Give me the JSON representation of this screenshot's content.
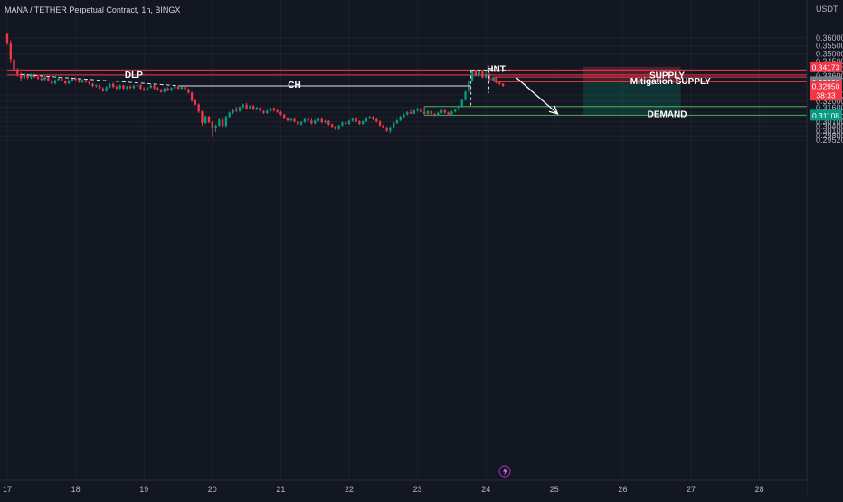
{
  "chart_data": {
    "type": "candlestick",
    "title": "MANA / TETHER Perpetual Contract, 1h, BINGX",
    "currency": "USDT",
    "grid": true,
    "ylim": [
      0.2935,
      0.3645
    ],
    "xlim": [
      17.0,
      28.95
    ],
    "price_ticks": [
      "0.36000",
      "0.35500",
      "0.35000",
      "0.34500",
      "0.34000",
      "0.33600",
      "0.32400",
      "0.32000",
      "0.31600",
      "0.31300",
      "0.31000",
      "0.30700",
      "0.30400",
      "0.30100",
      "0.29800",
      "0.29520"
    ],
    "date_ticks": [
      "17",
      "18",
      "19",
      "20",
      "21",
      "22",
      "23",
      "24",
      "25",
      "26",
      "27",
      "28"
    ],
    "price_badges": [
      {
        "label": "0.34173",
        "value": 0.34173,
        "color": "#f23645"
      },
      {
        "label": "0.33230",
        "value": 0.3323,
        "color": "#787b86"
      },
      {
        "label": "0.32950",
        "sublabel": "38:33",
        "value": 0.3295,
        "color": "#f23645"
      },
      {
        "label": "0.31108",
        "value": 0.31108,
        "color": "#089981"
      }
    ],
    "annotations": [
      {
        "text": "DLP",
        "x": 18.85,
        "y": 0.3372
      },
      {
        "text": "CH",
        "x": 21.2,
        "y": 0.3309
      },
      {
        "text": "HNT",
        "x": 24.15,
        "y": 0.3409
      },
      {
        "text": "SUPPLY",
        "x": 26.65,
        "y": 0.3367
      },
      {
        "text": "Mitigation SUPPLY",
        "x": 26.7,
        "y": 0.3331
      },
      {
        "text": "DEMAND",
        "x": 26.65,
        "y": 0.3122
      }
    ],
    "levels": [
      {
        "name": "supply-top",
        "price": 0.3397,
        "x_start": 17.0,
        "color": "#f23645"
      },
      {
        "name": "supply-bottom",
        "price": 0.3366,
        "x_start": 17.0,
        "color": "#f23645"
      },
      {
        "name": "mitigation-top",
        "price": 0.3353,
        "x_start": 24.12,
        "color": "#f23645"
      },
      {
        "name": "mitigation-bottom",
        "price": 0.3323,
        "x_start": 24.12,
        "color": "#f23645"
      },
      {
        "name": "demand-top",
        "price": 0.3166,
        "x_start": 23.1,
        "color": "#4caf50"
      },
      {
        "name": "demand-bottom",
        "price": 0.31108,
        "x_start": 23.1,
        "color": "#4caf50"
      }
    ],
    "lines": [
      {
        "name": "dlp-line",
        "x1": 17.2,
        "y1": 0.3369,
        "x2": 19.55,
        "y2": 0.3296,
        "style": "dashed"
      },
      {
        "name": "ch-line",
        "x1": 19.55,
        "y1": 0.3296,
        "x2": 23.78,
        "y2": 0.3296,
        "style": "solid"
      },
      {
        "name": "hnt-line",
        "x1": 23.78,
        "y1": 0.3396,
        "x2": 24.35,
        "y2": 0.3396,
        "style": "dashed"
      }
    ],
    "arrow": {
      "x1": 24.45,
      "y1": 0.3347,
      "x2": 25.05,
      "y2": 0.3119
    },
    "position_box": {
      "x_start": 25.42,
      "x_end": 26.85,
      "stop": 0.34173,
      "entry": 0.3323,
      "target": 0.31108,
      "risk_color": "#f23645",
      "reward_color": "#089981"
    },
    "candles": [
      [
        17.0,
        0.3625,
        0.363,
        0.3555,
        0.357
      ],
      [
        17.05,
        0.357,
        0.3585,
        0.344,
        0.3465
      ],
      [
        17.1,
        0.3465,
        0.3475,
        0.3375,
        0.3395
      ],
      [
        17.15,
        0.3395,
        0.341,
        0.3355,
        0.337
      ],
      [
        17.2,
        0.337,
        0.338,
        0.3325,
        0.3345
      ],
      [
        17.25,
        0.3345,
        0.3378,
        0.3338,
        0.3365
      ],
      [
        17.3,
        0.3365,
        0.3372,
        0.3339,
        0.3348
      ],
      [
        17.35,
        0.3348,
        0.3375,
        0.334,
        0.3366
      ],
      [
        17.4,
        0.3366,
        0.3373,
        0.3346,
        0.3355
      ],
      [
        17.45,
        0.3355,
        0.3368,
        0.3337,
        0.3343
      ],
      [
        17.5,
        0.3343,
        0.3358,
        0.3327,
        0.3335
      ],
      [
        17.55,
        0.3335,
        0.3361,
        0.3329,
        0.3352
      ],
      [
        17.6,
        0.3352,
        0.3358,
        0.3324,
        0.333
      ],
      [
        17.65,
        0.333,
        0.3339,
        0.3306,
        0.3312
      ],
      [
        17.7,
        0.3312,
        0.3338,
        0.3305,
        0.3333
      ],
      [
        17.75,
        0.3333,
        0.3356,
        0.3328,
        0.3349
      ],
      [
        17.8,
        0.3349,
        0.3355,
        0.332,
        0.3326
      ],
      [
        17.85,
        0.3326,
        0.3334,
        0.3306,
        0.3313
      ],
      [
        17.9,
        0.3313,
        0.3338,
        0.3307,
        0.3331
      ],
      [
        17.95,
        0.3331,
        0.335,
        0.3323,
        0.3344
      ],
      [
        18.0,
        0.3344,
        0.3352,
        0.3329,
        0.3335
      ],
      [
        18.05,
        0.3335,
        0.3344,
        0.3315,
        0.3321
      ],
      [
        18.1,
        0.3321,
        0.334,
        0.3313,
        0.3334
      ],
      [
        18.15,
        0.3334,
        0.3341,
        0.3316,
        0.3323
      ],
      [
        18.2,
        0.3323,
        0.3329,
        0.3304,
        0.331
      ],
      [
        18.25,
        0.331,
        0.3315,
        0.3288,
        0.3296
      ],
      [
        18.3,
        0.3296,
        0.3306,
        0.3285,
        0.3301
      ],
      [
        18.35,
        0.3301,
        0.3306,
        0.3276,
        0.328
      ],
      [
        18.4,
        0.328,
        0.3289,
        0.3258,
        0.3264
      ],
      [
        18.45,
        0.3264,
        0.3296,
        0.3258,
        0.3289
      ],
      [
        18.5,
        0.3289,
        0.3314,
        0.3282,
        0.3308
      ],
      [
        18.55,
        0.3308,
        0.3318,
        0.3283,
        0.329
      ],
      [
        18.6,
        0.329,
        0.3299,
        0.3273,
        0.3281
      ],
      [
        18.65,
        0.3281,
        0.3306,
        0.3275,
        0.3299
      ],
      [
        18.7,
        0.3299,
        0.3305,
        0.3274,
        0.328
      ],
      [
        18.75,
        0.328,
        0.3298,
        0.3272,
        0.3292
      ],
      [
        18.8,
        0.3292,
        0.3301,
        0.3277,
        0.3283
      ],
      [
        18.85,
        0.3283,
        0.3305,
        0.3276,
        0.3297
      ],
      [
        18.9,
        0.3297,
        0.3307,
        0.3288,
        0.3301
      ],
      [
        18.95,
        0.3301,
        0.3307,
        0.3273,
        0.3279
      ],
      [
        19.0,
        0.3279,
        0.3289,
        0.3264,
        0.327
      ],
      [
        19.05,
        0.327,
        0.3291,
        0.3265,
        0.3286
      ],
      [
        19.1,
        0.3286,
        0.3307,
        0.3281,
        0.3299
      ],
      [
        19.15,
        0.3299,
        0.3306,
        0.3275,
        0.3282
      ],
      [
        19.2,
        0.3282,
        0.329,
        0.3266,
        0.3271
      ],
      [
        19.25,
        0.3271,
        0.3278,
        0.3253,
        0.3259
      ],
      [
        19.3,
        0.3259,
        0.3287,
        0.3252,
        0.328
      ],
      [
        19.35,
        0.328,
        0.3289,
        0.3262,
        0.3268
      ],
      [
        19.4,
        0.3268,
        0.3288,
        0.3262,
        0.3283
      ],
      [
        19.45,
        0.3283,
        0.3298,
        0.3276,
        0.3292
      ],
      [
        19.5,
        0.3292,
        0.33,
        0.3274,
        0.3279
      ],
      [
        19.55,
        0.3279,
        0.3297,
        0.327,
        0.329
      ],
      [
        19.6,
        0.329,
        0.3296,
        0.3268,
        0.3275
      ],
      [
        19.65,
        0.3275,
        0.3281,
        0.3248,
        0.3253
      ],
      [
        19.7,
        0.3253,
        0.326,
        0.3195,
        0.3203
      ],
      [
        19.75,
        0.3203,
        0.3212,
        0.3172,
        0.3178
      ],
      [
        19.8,
        0.3178,
        0.3186,
        0.3125,
        0.3134
      ],
      [
        19.85,
        0.3134,
        0.3141,
        0.3045,
        0.3062
      ],
      [
        19.9,
        0.3062,
        0.311,
        0.3055,
        0.3102
      ],
      [
        19.95,
        0.3102,
        0.3108,
        0.306,
        0.3066
      ],
      [
        20.0,
        0.3066,
        0.3075,
        0.2977,
        0.3028
      ],
      [
        20.05,
        0.3028,
        0.3052,
        0.3005,
        0.3046
      ],
      [
        20.1,
        0.3046,
        0.309,
        0.3039,
        0.3083
      ],
      [
        20.15,
        0.3083,
        0.3099,
        0.3033,
        0.3042
      ],
      [
        20.2,
        0.3042,
        0.3109,
        0.3036,
        0.31
      ],
      [
        20.25,
        0.31,
        0.3134,
        0.3093,
        0.3127
      ],
      [
        20.3,
        0.3127,
        0.3151,
        0.3118,
        0.3143
      ],
      [
        20.35,
        0.3143,
        0.3164,
        0.3131,
        0.3138
      ],
      [
        20.4,
        0.3138,
        0.3169,
        0.3132,
        0.3162
      ],
      [
        20.45,
        0.3162,
        0.3184,
        0.3154,
        0.3177
      ],
      [
        20.5,
        0.3177,
        0.3189,
        0.3145,
        0.3153
      ],
      [
        20.55,
        0.3153,
        0.3174,
        0.3147,
        0.3168
      ],
      [
        20.6,
        0.3168,
        0.3176,
        0.3141,
        0.3148
      ],
      [
        20.65,
        0.3148,
        0.3165,
        0.3141,
        0.3159
      ],
      [
        20.7,
        0.3159,
        0.3166,
        0.313,
        0.3137
      ],
      [
        20.75,
        0.3137,
        0.3142,
        0.3119,
        0.3125
      ],
      [
        20.8,
        0.3125,
        0.3146,
        0.3118,
        0.3139
      ],
      [
        20.85,
        0.3139,
        0.3161,
        0.3133,
        0.3155
      ],
      [
        20.9,
        0.3155,
        0.3161,
        0.3133,
        0.3141
      ],
      [
        20.95,
        0.3141,
        0.3148,
        0.3125,
        0.3131
      ],
      [
        21.0,
        0.3131,
        0.3138,
        0.3108,
        0.3114
      ],
      [
        21.05,
        0.3114,
        0.312,
        0.3084,
        0.3092
      ],
      [
        21.1,
        0.3092,
        0.3097,
        0.3072,
        0.3078
      ],
      [
        21.15,
        0.3078,
        0.3092,
        0.307,
        0.3086
      ],
      [
        21.2,
        0.3086,
        0.3092,
        0.3065,
        0.3071
      ],
      [
        21.25,
        0.3071,
        0.3076,
        0.3045,
        0.3052
      ],
      [
        21.3,
        0.3052,
        0.3074,
        0.3046,
        0.3068
      ],
      [
        21.35,
        0.3068,
        0.3092,
        0.3062,
        0.3085
      ],
      [
        21.4,
        0.3085,
        0.3091,
        0.3069,
        0.3076
      ],
      [
        21.45,
        0.3076,
        0.3088,
        0.3052,
        0.3059
      ],
      [
        21.5,
        0.3059,
        0.3083,
        0.3053,
        0.3076
      ],
      [
        21.55,
        0.3076,
        0.3094,
        0.307,
        0.3087
      ],
      [
        21.6,
        0.3087,
        0.3092,
        0.306,
        0.3066
      ],
      [
        21.65,
        0.3066,
        0.3081,
        0.306,
        0.3074
      ],
      [
        21.7,
        0.3074,
        0.3079,
        0.3045,
        0.3052
      ],
      [
        21.75,
        0.3052,
        0.3058,
        0.3032,
        0.3038
      ],
      [
        21.8,
        0.3038,
        0.3044,
        0.3016,
        0.3023
      ],
      [
        21.85,
        0.3023,
        0.3051,
        0.3017,
        0.3046
      ],
      [
        21.9,
        0.3046,
        0.3071,
        0.304,
        0.3064
      ],
      [
        21.95,
        0.3064,
        0.307,
        0.3049,
        0.3055
      ],
      [
        22.0,
        0.3055,
        0.3082,
        0.3049,
        0.3075
      ],
      [
        22.05,
        0.3075,
        0.3095,
        0.3069,
        0.3088
      ],
      [
        22.1,
        0.3088,
        0.3094,
        0.3066,
        0.3072
      ],
      [
        22.15,
        0.3072,
        0.3078,
        0.3049,
        0.3056
      ],
      [
        22.2,
        0.3056,
        0.3078,
        0.305,
        0.3071
      ],
      [
        22.25,
        0.3071,
        0.3098,
        0.3065,
        0.3091
      ],
      [
        22.3,
        0.3091,
        0.3107,
        0.3085,
        0.31
      ],
      [
        22.35,
        0.31,
        0.3106,
        0.3078,
        0.3085
      ],
      [
        22.4,
        0.3085,
        0.3092,
        0.3064,
        0.3071
      ],
      [
        22.45,
        0.3071,
        0.3078,
        0.3039,
        0.3046
      ],
      [
        22.5,
        0.3046,
        0.3052,
        0.3026,
        0.3032
      ],
      [
        22.55,
        0.3032,
        0.3039,
        0.3005,
        0.3012
      ],
      [
        22.6,
        0.3012,
        0.3041,
        0.2997,
        0.3034
      ],
      [
        22.65,
        0.3034,
        0.3068,
        0.3028,
        0.3061
      ],
      [
        22.7,
        0.3061,
        0.3085,
        0.3055,
        0.3078
      ],
      [
        22.75,
        0.3078,
        0.3108,
        0.3072,
        0.3101
      ],
      [
        22.8,
        0.3101,
        0.3121,
        0.3095,
        0.3115
      ],
      [
        22.85,
        0.3115,
        0.3136,
        0.3109,
        0.3129
      ],
      [
        22.9,
        0.3129,
        0.3145,
        0.3116,
        0.3122
      ],
      [
        22.95,
        0.3122,
        0.3146,
        0.3116,
        0.3139
      ],
      [
        23.0,
        0.3139,
        0.3158,
        0.3133,
        0.3151
      ],
      [
        23.05,
        0.3151,
        0.3156,
        0.3125,
        0.3131
      ],
      [
        23.1,
        0.3131,
        0.3137,
        0.3115,
        0.3121
      ],
      [
        23.15,
        0.3121,
        0.3143,
        0.3115,
        0.3136
      ],
      [
        23.2,
        0.3136,
        0.3142,
        0.3112,
        0.3118
      ],
      [
        23.25,
        0.3118,
        0.3124,
        0.3106,
        0.3112
      ],
      [
        23.3,
        0.3112,
        0.3133,
        0.3106,
        0.3126
      ],
      [
        23.35,
        0.3126,
        0.3148,
        0.312,
        0.3141
      ],
      [
        23.4,
        0.3141,
        0.3147,
        0.3121,
        0.3127
      ],
      [
        23.45,
        0.3127,
        0.3133,
        0.3109,
        0.3115
      ],
      [
        23.5,
        0.3115,
        0.3141,
        0.3109,
        0.3134
      ],
      [
        23.55,
        0.3134,
        0.3153,
        0.3128,
        0.3146
      ],
      [
        23.6,
        0.3146,
        0.3172,
        0.314,
        0.3165
      ],
      [
        23.65,
        0.3165,
        0.3215,
        0.3159,
        0.3208
      ],
      [
        23.7,
        0.3208,
        0.3266,
        0.3202,
        0.3259
      ],
      [
        23.75,
        0.3259,
        0.3335,
        0.3253,
        0.3328
      ],
      [
        23.8,
        0.3328,
        0.3396,
        0.3322,
        0.3389
      ],
      [
        23.85,
        0.3389,
        0.3397,
        0.3355,
        0.3362
      ],
      [
        23.9,
        0.3362,
        0.3393,
        0.3356,
        0.3386
      ],
      [
        23.95,
        0.3386,
        0.3392,
        0.3344,
        0.3351
      ],
      [
        24.0,
        0.3351,
        0.3395,
        0.3345,
        0.3371
      ],
      [
        24.05,
        0.3371,
        0.3377,
        0.3325,
        0.3332
      ],
      [
        24.1,
        0.3332,
        0.3356,
        0.3326,
        0.3349
      ],
      [
        24.15,
        0.3349,
        0.3354,
        0.3312,
        0.3318
      ],
      [
        24.2,
        0.3318,
        0.3326,
        0.3302,
        0.3309
      ],
      [
        24.25,
        0.3309,
        0.3314,
        0.3291,
        0.3295
      ]
    ]
  }
}
